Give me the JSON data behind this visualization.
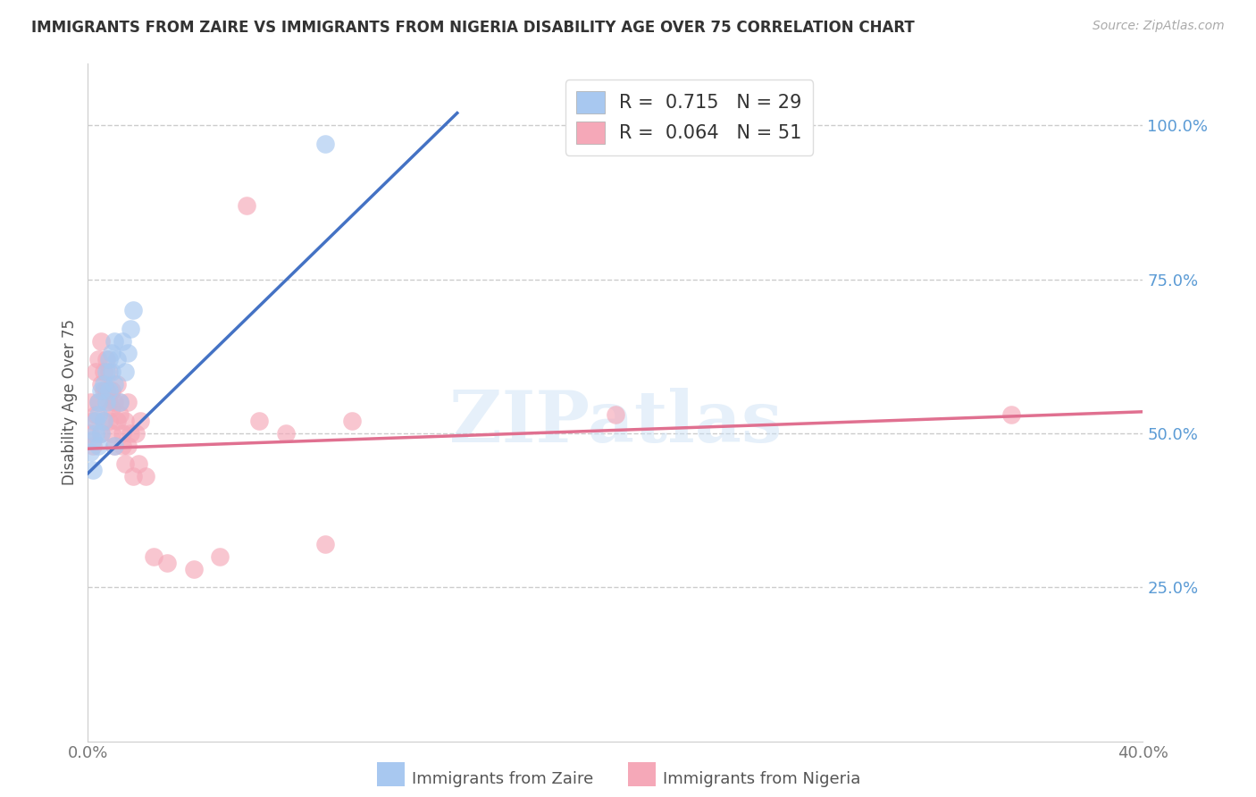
{
  "title": "IMMIGRANTS FROM ZAIRE VS IMMIGRANTS FROM NIGERIA DISABILITY AGE OVER 75 CORRELATION CHART",
  "source": "Source: ZipAtlas.com",
  "ylabel": "Disability Age Over 75",
  "xlim": [
    0.0,
    0.4
  ],
  "ylim": [
    0.0,
    1.1
  ],
  "xticks": [
    0.0,
    0.05,
    0.1,
    0.15,
    0.2,
    0.25,
    0.3,
    0.35,
    0.4
  ],
  "xticklabels": [
    "0.0%",
    "",
    "",
    "",
    "",
    "",
    "",
    "",
    "40.0%"
  ],
  "yticks_right": [
    0.25,
    0.5,
    0.75,
    1.0
  ],
  "yticklabels_right": [
    "25.0%",
    "50.0%",
    "75.0%",
    "100.0%"
  ],
  "zaire_color": "#a8c8f0",
  "nigeria_color": "#f5a8b8",
  "zaire_line_color": "#4472c4",
  "nigeria_line_color": "#e07090",
  "R_zaire": 0.715,
  "N_zaire": 29,
  "R_nigeria": 0.064,
  "N_nigeria": 51,
  "legend_label_zaire": "Immigrants from Zaire",
  "legend_label_nigeria": "Immigrants from Nigeria",
  "watermark": "ZIPatlas",
  "background_color": "#ffffff",
  "zaire_x": [
    0.001,
    0.002,
    0.002,
    0.003,
    0.003,
    0.004,
    0.004,
    0.004,
    0.005,
    0.005,
    0.006,
    0.006,
    0.007,
    0.007,
    0.008,
    0.008,
    0.009,
    0.009,
    0.01,
    0.01,
    0.01,
    0.011,
    0.012,
    0.013,
    0.014,
    0.015,
    0.016,
    0.017,
    0.09
  ],
  "zaire_y": [
    0.47,
    0.44,
    0.49,
    0.5,
    0.52,
    0.48,
    0.53,
    0.55,
    0.5,
    0.57,
    0.52,
    0.58,
    0.55,
    0.6,
    0.57,
    0.62,
    0.6,
    0.63,
    0.58,
    0.65,
    0.48,
    0.62,
    0.55,
    0.65,
    0.6,
    0.63,
    0.67,
    0.7,
    0.97
  ],
  "nigeria_x": [
    0.001,
    0.001,
    0.002,
    0.002,
    0.003,
    0.003,
    0.004,
    0.004,
    0.005,
    0.005,
    0.005,
    0.006,
    0.006,
    0.006,
    0.007,
    0.007,
    0.008,
    0.008,
    0.008,
    0.009,
    0.009,
    0.009,
    0.01,
    0.01,
    0.011,
    0.011,
    0.012,
    0.012,
    0.013,
    0.013,
    0.014,
    0.014,
    0.015,
    0.015,
    0.016,
    0.017,
    0.018,
    0.019,
    0.02,
    0.022,
    0.025,
    0.03,
    0.04,
    0.05,
    0.06,
    0.065,
    0.075,
    0.09,
    0.1,
    0.2,
    0.35
  ],
  "nigeria_y": [
    0.5,
    0.55,
    0.52,
    0.48,
    0.53,
    0.6,
    0.55,
    0.62,
    0.5,
    0.58,
    0.65,
    0.57,
    0.52,
    0.6,
    0.62,
    0.57,
    0.6,
    0.55,
    0.52,
    0.57,
    0.54,
    0.5,
    0.55,
    0.48,
    0.52,
    0.58,
    0.53,
    0.55,
    0.5,
    0.48,
    0.52,
    0.45,
    0.55,
    0.48,
    0.5,
    0.43,
    0.5,
    0.45,
    0.52,
    0.43,
    0.3,
    0.29,
    0.28,
    0.3,
    0.87,
    0.52,
    0.5,
    0.32,
    0.52,
    0.53,
    0.53
  ],
  "zaire_line_x0": 0.0,
  "zaire_line_y0": 0.435,
  "zaire_line_x1": 0.14,
  "zaire_line_y1": 1.02,
  "nigeria_line_x0": 0.0,
  "nigeria_line_y0": 0.475,
  "nigeria_line_x1": 0.4,
  "nigeria_line_y1": 0.535
}
